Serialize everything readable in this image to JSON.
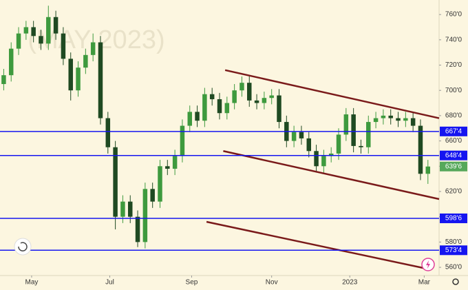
{
  "chart_data": {
    "type": "candlestick",
    "watermark": "(MAY 2023)",
    "x": [
      2,
      6,
      10,
      14,
      18,
      22,
      26,
      30,
      34,
      38,
      42,
      46,
      50,
      54,
      58,
      62,
      66,
      70,
      74,
      78,
      82,
      86,
      90,
      94,
      98,
      102,
      106,
      110,
      114,
      118,
      122,
      126,
      130,
      134,
      138,
      142,
      146,
      150,
      154,
      158,
      162,
      166,
      170,
      174,
      178,
      182,
      186,
      190,
      194,
      198,
      202,
      206,
      210,
      214,
      218,
      222,
      226,
      230
    ],
    "open": [
      705,
      712,
      733,
      745,
      750,
      743,
      737,
      758,
      745,
      725,
      700,
      718,
      728,
      738,
      678,
      655,
      600,
      612,
      600,
      580,
      622,
      612,
      640,
      638,
      648,
      672,
      683,
      676,
      697,
      693,
      682,
      690,
      700,
      706,
      692,
      690,
      694,
      696,
      675,
      660,
      667,
      662,
      652,
      640,
      648,
      650,
      665,
      681,
      656,
      655,
      675,
      678,
      680,
      678,
      676,
      678,
      672,
      634
    ],
    "high": [
      717,
      738,
      750,
      755,
      755,
      748,
      767,
      763,
      750,
      730,
      723,
      733,
      745,
      743,
      683,
      660,
      617,
      617,
      605,
      627,
      627,
      645,
      645,
      653,
      677,
      688,
      688,
      702,
      702,
      698,
      695,
      705,
      711,
      711,
      697,
      699,
      701,
      701,
      680,
      672,
      672,
      667,
      657,
      653,
      655,
      670,
      686,
      686,
      661,
      680,
      683,
      685,
      685,
      683,
      683,
      683,
      677,
      645
    ],
    "low": [
      700,
      707,
      728,
      740,
      738,
      732,
      732,
      740,
      720,
      692,
      695,
      713,
      723,
      673,
      650,
      590,
      595,
      595,
      576,
      575,
      607,
      607,
      633,
      633,
      643,
      667,
      671,
      671,
      688,
      677,
      677,
      685,
      695,
      687,
      685,
      685,
      689,
      670,
      655,
      655,
      657,
      647,
      635,
      635,
      643,
      645,
      660,
      651,
      650,
      650,
      670,
      673,
      673,
      671,
      671,
      667,
      629,
      626
    ],
    "close": [
      712,
      733,
      745,
      750,
      743,
      737,
      758,
      745,
      725,
      700,
      718,
      728,
      738,
      678,
      655,
      600,
      612,
      600,
      580,
      622,
      612,
      640,
      638,
      648,
      672,
      683,
      676,
      697,
      693,
      682,
      690,
      700,
      706,
      692,
      690,
      694,
      696,
      675,
      660,
      667,
      662,
      652,
      640,
      648,
      650,
      665,
      681,
      656,
      655,
      675,
      678,
      680,
      678,
      676,
      678,
      672,
      634,
      639.75
    ],
    "up_color": "#3e9a3e",
    "down_color": "#1f4a22",
    "xlim": [
      0,
      236
    ],
    "xticks": [
      {
        "value": 17,
        "label": "May"
      },
      {
        "value": 59,
        "label": "Jul"
      },
      {
        "value": 103,
        "label": "Sep"
      },
      {
        "value": 146,
        "label": "Nov"
      },
      {
        "value": 188,
        "label": "2023"
      },
      {
        "value": 228,
        "label": "Mar"
      }
    ],
    "ylim": [
      553.5,
      771.5
    ],
    "yticks": [
      {
        "value": 560,
        "label": "560'0"
      },
      {
        "value": 580,
        "label": "580'0"
      },
      {
        "value": 600,
        "label": "600'0"
      },
      {
        "value": 620,
        "label": "620'0"
      },
      {
        "value": 640,
        "label": "640'0"
      },
      {
        "value": 660,
        "label": "660'0"
      },
      {
        "value": 680,
        "label": "680'0"
      },
      {
        "value": 700,
        "label": "700'0"
      },
      {
        "value": 720,
        "label": "720'0"
      },
      {
        "value": 740,
        "label": "740'0"
      },
      {
        "value": 760,
        "label": "760'0"
      }
    ],
    "levels": [
      {
        "value": 667.5,
        "label": "667'4"
      },
      {
        "value": 648.5,
        "label": "648'4"
      },
      {
        "value": 598.75,
        "label": "598'6"
      },
      {
        "value": 573.5,
        "label": "573'4"
      }
    ],
    "level_color": "#1515f0",
    "last_price": {
      "value": 639.75,
      "label": "639'6"
    },
    "last_price_color": "#56a85a",
    "trend_lines": [
      {
        "x": [
          121,
          236
        ],
        "y": [
          716,
          678
        ]
      },
      {
        "x": [
          120,
          236
        ],
        "y": [
          652,
          614
        ]
      },
      {
        "x": [
          111,
          229
        ],
        "y": [
          596,
          559
        ]
      }
    ],
    "trend_color": "#7a1a1a"
  }
}
